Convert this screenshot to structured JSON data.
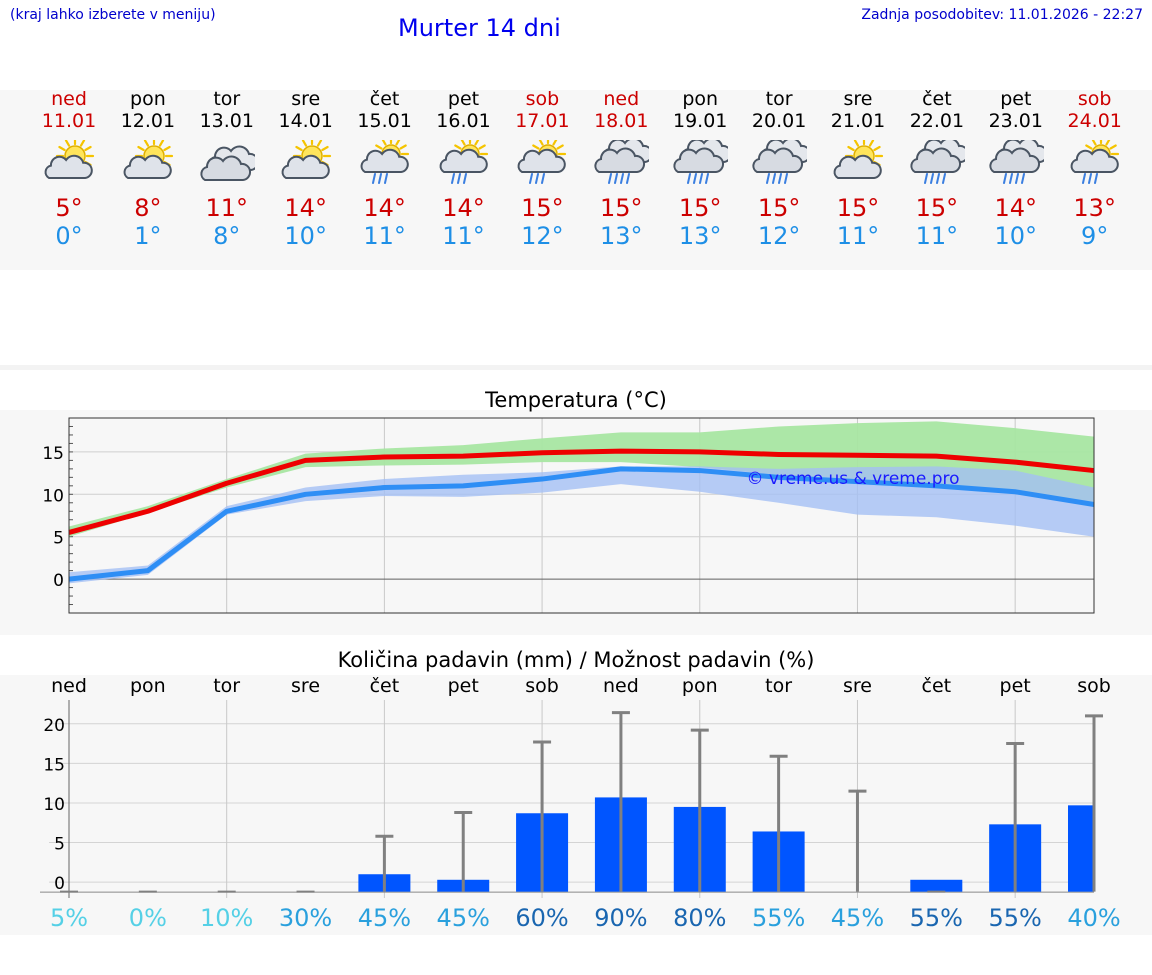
{
  "header": {
    "location_hint": "(kraj lahko izberete v meniju)",
    "title": "Murter 14 dni",
    "updated": "Zadnja posodobitev: 11.01.2026 - 22:27"
  },
  "days": [
    {
      "name": "ned",
      "date": "11.01",
      "weekend": true,
      "icon": "sun-cloud-icon",
      "tmax": "5°",
      "tmin": "0°"
    },
    {
      "name": "pon",
      "date": "12.01",
      "weekend": false,
      "icon": "sun-cloud-icon",
      "tmax": "8°",
      "tmin": "1°"
    },
    {
      "name": "tor",
      "date": "13.01",
      "weekend": false,
      "icon": "cloudy-icon",
      "tmax": "11°",
      "tmin": "8°"
    },
    {
      "name": "sre",
      "date": "14.01",
      "weekend": false,
      "icon": "sun-cloud-icon",
      "tmax": "14°",
      "tmin": "10°"
    },
    {
      "name": "čet",
      "date": "15.01",
      "weekend": false,
      "icon": "sun-cloud-rain-icon",
      "tmax": "14°",
      "tmin": "11°"
    },
    {
      "name": "pet",
      "date": "16.01",
      "weekend": false,
      "icon": "sun-cloud-rain-icon",
      "tmax": "14°",
      "tmin": "11°"
    },
    {
      "name": "sob",
      "date": "17.01",
      "weekend": true,
      "icon": "sun-cloud-rain-icon",
      "tmax": "15°",
      "tmin": "12°"
    },
    {
      "name": "ned",
      "date": "18.01",
      "weekend": true,
      "icon": "cloud-rain-icon",
      "tmax": "15°",
      "tmin": "13°"
    },
    {
      "name": "pon",
      "date": "19.01",
      "weekend": false,
      "icon": "cloud-rain-icon",
      "tmax": "15°",
      "tmin": "13°"
    },
    {
      "name": "tor",
      "date": "20.01",
      "weekend": false,
      "icon": "cloud-rain-icon",
      "tmax": "15°",
      "tmin": "12°"
    },
    {
      "name": "sre",
      "date": "21.01",
      "weekend": false,
      "icon": "sun-cloud-icon",
      "tmax": "15°",
      "tmin": "11°"
    },
    {
      "name": "čet",
      "date": "22.01",
      "weekend": false,
      "icon": "cloud-rain-icon",
      "tmax": "15°",
      "tmin": "11°"
    },
    {
      "name": "pet",
      "date": "23.01",
      "weekend": false,
      "icon": "cloud-rain-icon",
      "tmax": "14°",
      "tmin": "10°"
    },
    {
      "name": "sob",
      "date": "24.01",
      "weekend": true,
      "icon": "sun-cloud-rain-icon",
      "tmax": "13°",
      "tmin": "9°"
    }
  ],
  "colors": {
    "max_line": "#ee0000",
    "min_line": "#2e8ef5",
    "max_band": "#a8e6a2",
    "min_band": "#a4bff4",
    "bar": "#0055ff",
    "whisker": "#808080"
  },
  "chart_data": [
    {
      "type": "line",
      "title": "Temperatura (°C)",
      "watermark": "© vreme.us & vreme.pro",
      "x": [
        0,
        1,
        2,
        3,
        4,
        5,
        6,
        7,
        8,
        9,
        10,
        11,
        12,
        13
      ],
      "ylim": [
        -4,
        19
      ],
      "yticks": [
        0,
        5,
        10,
        15
      ],
      "series": [
        {
          "name": "max",
          "values": [
            5.5,
            8,
            11.3,
            14,
            14.4,
            14.5,
            14.9,
            15.1,
            15.0,
            14.7,
            14.6,
            14.5,
            13.8,
            12.8
          ]
        },
        {
          "name": "min",
          "values": [
            0,
            1,
            8,
            10,
            10.8,
            11,
            11.8,
            13,
            12.8,
            12,
            11.5,
            11,
            10.3,
            8.8
          ]
        }
      ],
      "bands": [
        {
          "name": "max-range",
          "lower": [
            5,
            7.8,
            10.8,
            13.2,
            13.4,
            13.5,
            13.8,
            13.8,
            13.2,
            12.3,
            11.8,
            11.0,
            10.0,
            8.8
          ],
          "upper": [
            6.2,
            8.6,
            11.8,
            14.8,
            15.4,
            15.8,
            16.6,
            17.3,
            17.3,
            18.0,
            18.4,
            18.6,
            17.8,
            16.8
          ]
        },
        {
          "name": "min-range",
          "lower": [
            -0.5,
            0.5,
            7.6,
            9.2,
            9.8,
            9.7,
            10.2,
            11.2,
            10.3,
            9.0,
            7.6,
            7.3,
            6.3,
            5.0
          ],
          "upper": [
            0.8,
            1.6,
            8.6,
            10.8,
            11.8,
            12.3,
            12.6,
            13.3,
            13.3,
            13.0,
            13.2,
            13.3,
            12.8,
            10.8
          ]
        }
      ]
    },
    {
      "type": "bar",
      "title": "Količina padavin (mm) / Možnost padavin (%)",
      "categories": [
        "ned",
        "pon",
        "tor",
        "sre",
        "čet",
        "pet",
        "sob",
        "ned",
        "pon",
        "tor",
        "sre",
        "čet",
        "pet",
        "sob"
      ],
      "values": [
        0,
        0,
        0,
        0,
        1,
        0.3,
        8.7,
        10.7,
        9.5,
        6.4,
        0,
        0.3,
        7.3,
        9.7
      ],
      "whisker_max": [
        0,
        0,
        0,
        0,
        5.8,
        8.8,
        17.7,
        21.4,
        19.2,
        15.9,
        11.5,
        0,
        17.5,
        21
      ],
      "chance": [
        "5%",
        "0%",
        "10%",
        "30%",
        "45%",
        "45%",
        "60%",
        "90%",
        "80%",
        "55%",
        "45%",
        "55%",
        "55%",
        "40%"
      ],
      "chance_colors": [
        "#55d0e6",
        "#55d0e6",
        "#55d0e6",
        "#2aa0dd",
        "#2aa0dd",
        "#2aa0dd",
        "#1a66b0",
        "#1a66b0",
        "#1a66b0",
        "#2aa0dd",
        "#2aa0dd",
        "#1a66b0",
        "#1a66b0",
        "#2aa0dd"
      ],
      "ylim": [
        -2,
        23
      ],
      "yticks": [
        0,
        5,
        10,
        15,
        20
      ]
    }
  ]
}
